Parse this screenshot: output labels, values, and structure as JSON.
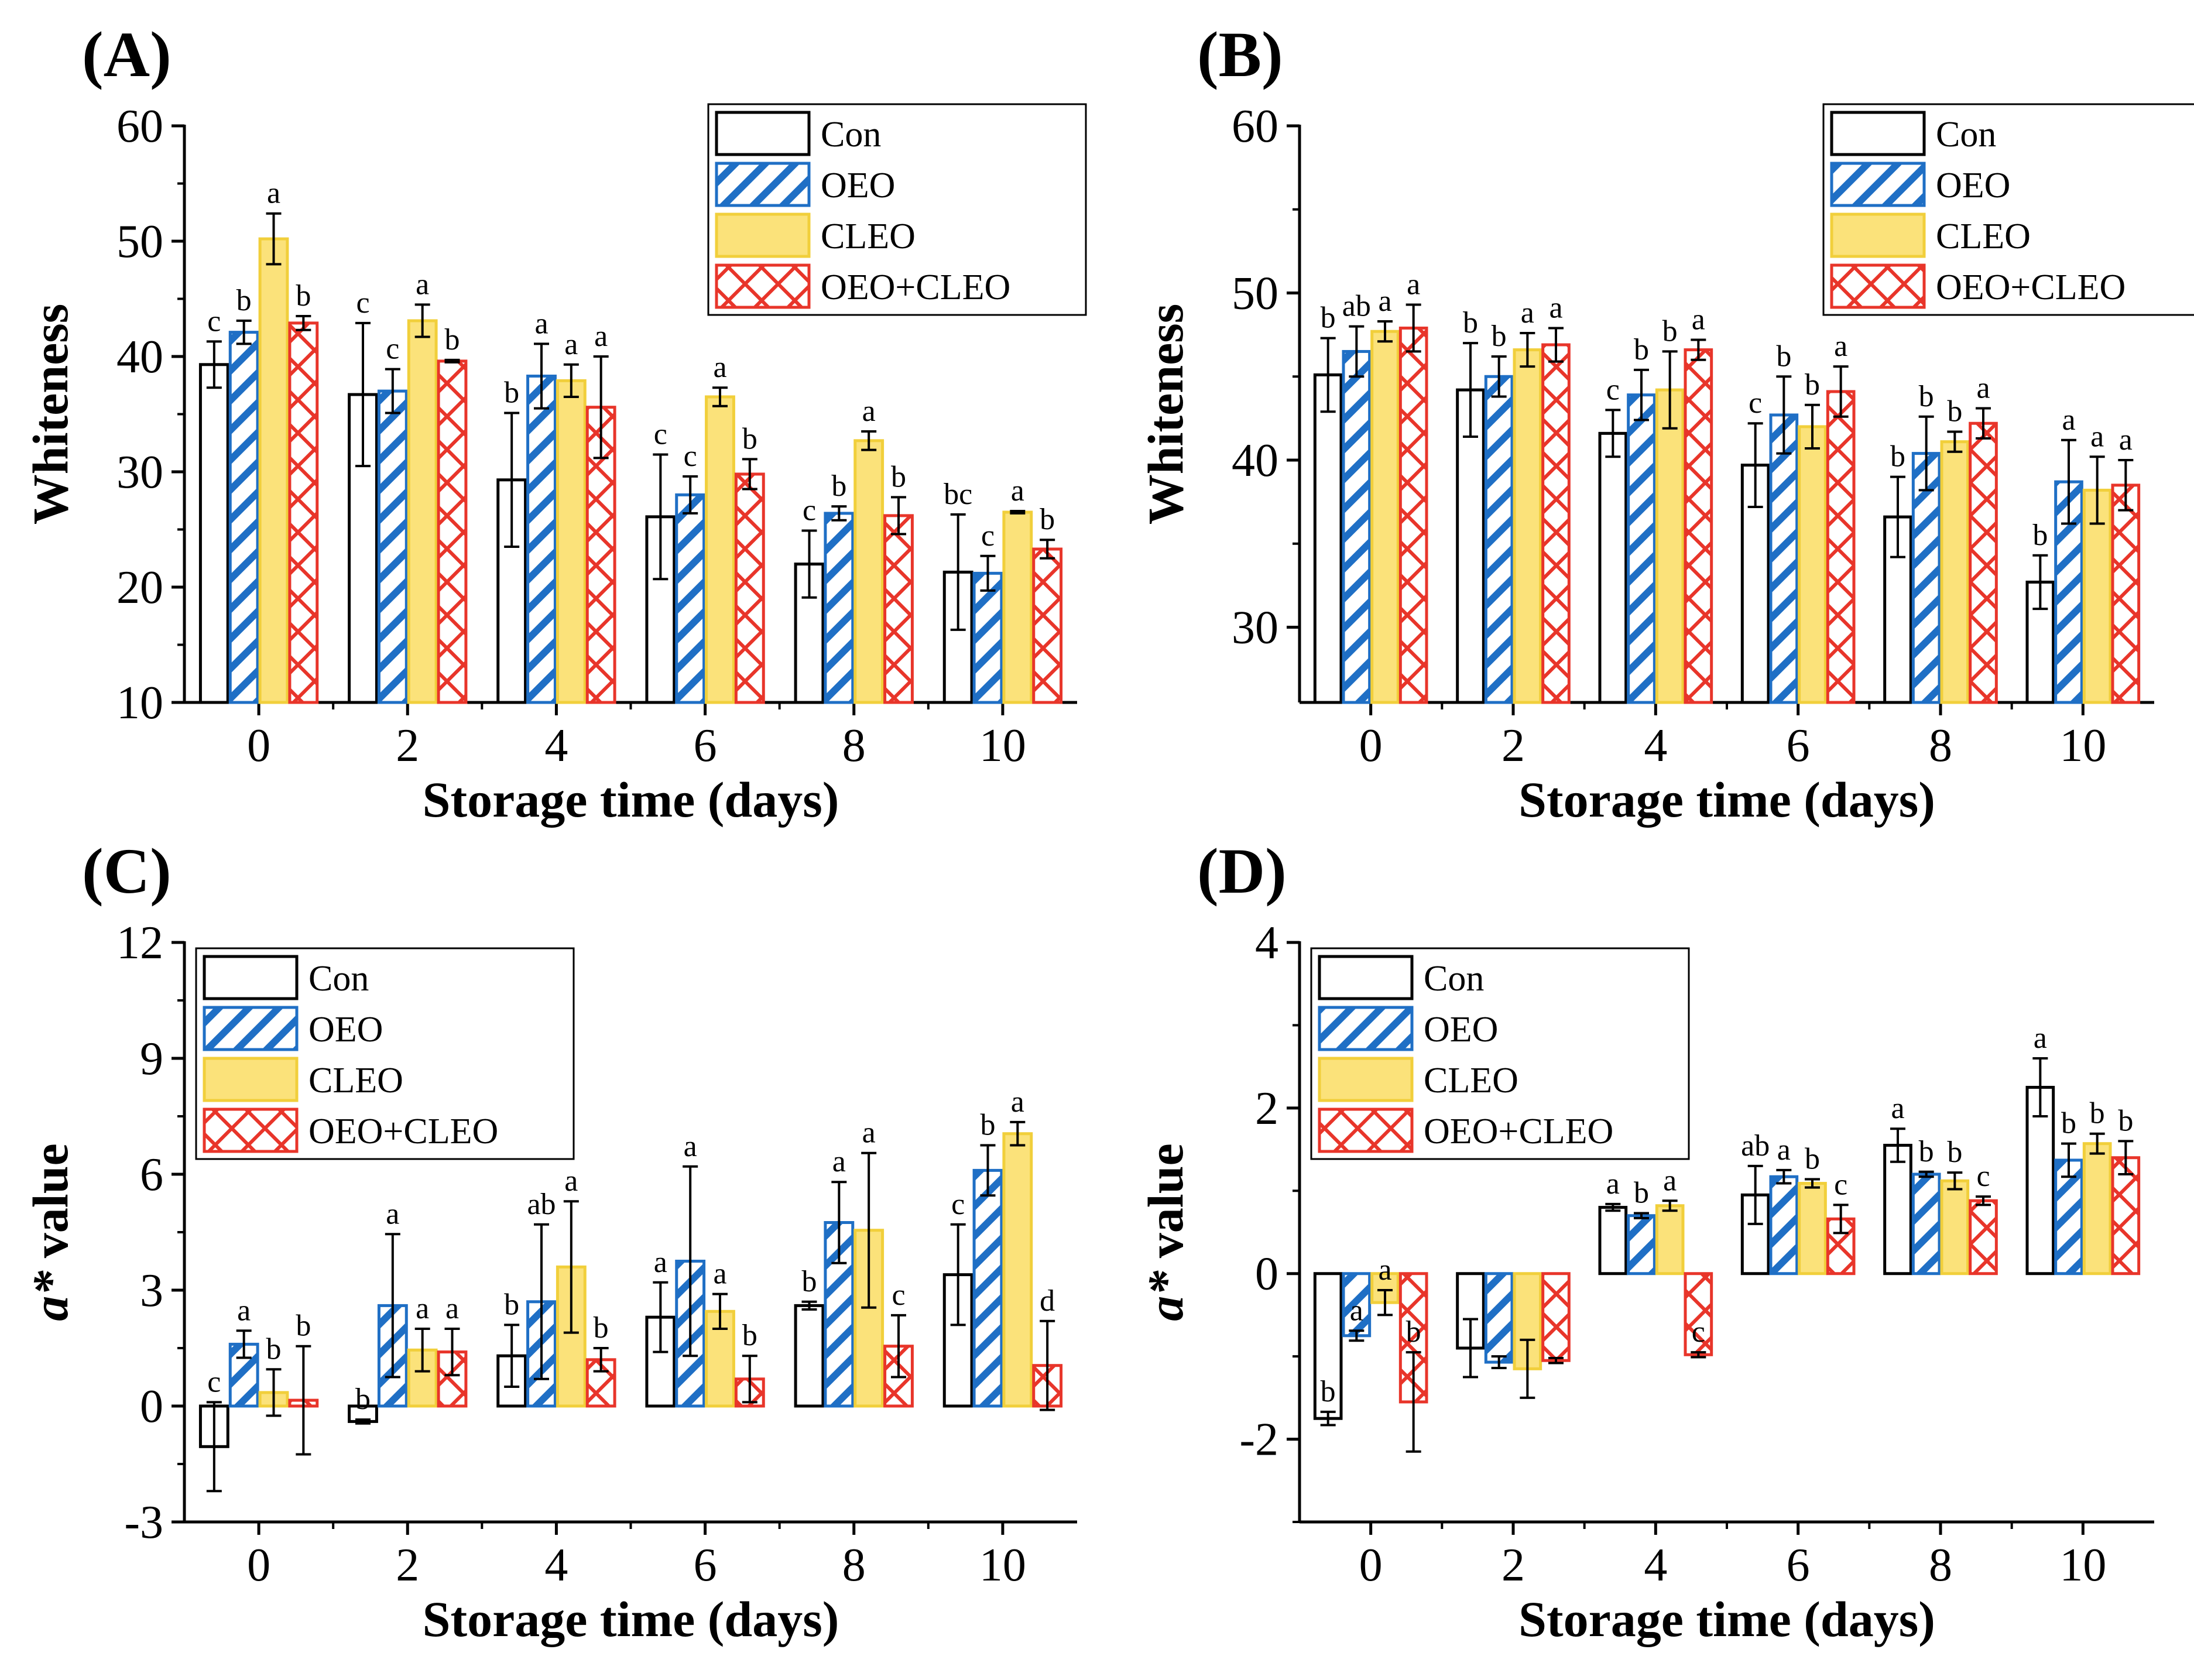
{
  "colors": {
    "Con": "#000000",
    "OEO": "#1f6fc5",
    "CLEO": "#f1cf3b",
    "CLEO_fill": "#fbe27a",
    "OEO+CLEO": "#e8352a"
  },
  "chart_data": [
    {
      "panel": "(A)",
      "type": "bar",
      "title": "",
      "xlabel": "Storage time (days)",
      "ylabel": "Whiteness",
      "ylim": [
        10,
        60
      ],
      "yticks": [
        "10",
        "20",
        "30",
        "40",
        "50",
        "60"
      ],
      "categories": [
        "0",
        "2",
        "4",
        "6",
        "8",
        "10"
      ],
      "legend": [
        "Con",
        "OEO",
        "CLEO",
        "OEO+CLEO"
      ],
      "legend_position": "top-right",
      "series": [
        {
          "name": "Con",
          "values": [
            39.3,
            36.7,
            29.3,
            26.1,
            22.0,
            21.3
          ],
          "errors": [
            2.0,
            6.2,
            5.8,
            5.4,
            2.9,
            5.0
          ],
          "letters": [
            "c",
            "c",
            "b",
            "c",
            "c",
            "bc"
          ]
        },
        {
          "name": "OEO",
          "values": [
            42.1,
            37.0,
            38.3,
            28.0,
            26.4,
            21.2
          ],
          "errors": [
            1.0,
            1.9,
            2.8,
            1.6,
            0.6,
            1.5
          ],
          "letters": [
            "b",
            "c",
            "a",
            "c",
            "b",
            "c"
          ]
        },
        {
          "name": "CLEO",
          "values": [
            50.2,
            43.1,
            37.9,
            36.5,
            32.7,
            26.5
          ],
          "errors": [
            2.2,
            1.4,
            1.4,
            0.8,
            0.8,
            0.1
          ],
          "letters": [
            "a",
            "a",
            "a",
            "a",
            "a",
            "a"
          ]
        },
        {
          "name": "OEO+CLEO",
          "values": [
            42.9,
            39.6,
            35.6,
            29.8,
            26.2,
            23.3
          ],
          "errors": [
            0.6,
            0.1,
            4.4,
            1.3,
            1.6,
            0.8
          ],
          "letters": [
            "b",
            "b",
            "a",
            "b",
            "b",
            "b"
          ]
        }
      ]
    },
    {
      "panel": "(B)",
      "type": "bar",
      "title": "",
      "xlabel": "Storage time (days)",
      "ylabel": "Whiteness",
      "ylim": [
        25.5,
        60
      ],
      "yticks": [
        "30",
        "40",
        "50",
        "60"
      ],
      "categories": [
        "0",
        "2",
        "4",
        "6",
        "8",
        "10"
      ],
      "legend": [
        "Con",
        "OEO",
        "CLEO",
        "OEO+CLEO"
      ],
      "legend_position": "top-right",
      "series": [
        {
          "name": "Con",
          "values": [
            45.1,
            44.2,
            41.6,
            39.7,
            36.6,
            32.7
          ],
          "errors": [
            2.2,
            2.8,
            1.4,
            2.5,
            2.4,
            1.6
          ],
          "letters": [
            "b",
            "b",
            "c",
            "c",
            "b",
            "b"
          ]
        },
        {
          "name": "OEO",
          "values": [
            46.5,
            45.0,
            43.9,
            42.7,
            40.4,
            38.7
          ],
          "errors": [
            1.5,
            1.2,
            1.5,
            2.3,
            2.2,
            2.5
          ],
          "letters": [
            "ab",
            "b",
            "b",
            "b",
            "b",
            "a"
          ]
        },
        {
          "name": "CLEO",
          "values": [
            47.7,
            46.6,
            44.2,
            42.0,
            41.1,
            38.2
          ],
          "errors": [
            0.6,
            1.0,
            2.3,
            1.3,
            0.6,
            2.0
          ],
          "letters": [
            "a",
            "a",
            "b",
            "b",
            "b",
            "a"
          ]
        },
        {
          "name": "OEO+CLEO",
          "values": [
            47.9,
            46.9,
            46.6,
            44.1,
            42.2,
            38.5
          ],
          "errors": [
            1.4,
            1.0,
            0.6,
            1.5,
            0.9,
            1.5
          ],
          "letters": [
            "a",
            "a",
            "a",
            "a",
            "a",
            "a"
          ]
        }
      ]
    },
    {
      "panel": "(C)",
      "type": "bar",
      "title": "",
      "xlabel": "Storage time (days)",
      "ylabel_italic": "a*",
      "ylabel_rest": " value",
      "ylim": [
        -3,
        12
      ],
      "yticks": [
        "-3",
        "0",
        "3",
        "6",
        "9",
        "12"
      ],
      "categories": [
        "0",
        "2",
        "4",
        "6",
        "8",
        "10"
      ],
      "legend": [
        "Con",
        "OEO",
        "CLEO",
        "OEO+CLEO"
      ],
      "legend_position": "top-left",
      "series": [
        {
          "name": "Con",
          "values": [
            -1.05,
            -0.4,
            1.3,
            2.3,
            2.6,
            3.4
          ],
          "errors": [
            1.15,
            0.05,
            0.8,
            0.9,
            0.1,
            1.3
          ],
          "letters": [
            "c",
            "b",
            "b",
            "a",
            "b",
            "c"
          ]
        },
        {
          "name": "OEO",
          "values": [
            1.6,
            2.6,
            2.7,
            3.75,
            4.75,
            6.1
          ],
          "errors": [
            0.35,
            1.85,
            2.0,
            2.45,
            1.05,
            0.65
          ],
          "letters": [
            "a",
            "a",
            "ab",
            "a",
            "a",
            "b"
          ]
        },
        {
          "name": "CLEO",
          "values": [
            0.35,
            1.45,
            3.6,
            2.45,
            4.55,
            7.05
          ],
          "errors": [
            0.6,
            0.55,
            1.7,
            0.45,
            2.0,
            0.3
          ],
          "letters": [
            "b",
            "a",
            "a",
            "a",
            "a",
            "a"
          ]
        },
        {
          "name": "OEO+CLEO",
          "values": [
            0.15,
            1.4,
            1.2,
            0.7,
            1.55,
            1.05
          ],
          "errors": [
            1.4,
            0.6,
            0.3,
            0.6,
            0.8,
            1.15
          ],
          "letters": [
            "b",
            "a",
            "b",
            "b",
            "c",
            "d"
          ]
        }
      ]
    },
    {
      "panel": "(D)",
      "type": "bar",
      "title": "",
      "xlabel": "Storage time (days)",
      "ylabel_italic": "a*",
      "ylabel_rest": " value",
      "ylim": [
        -3,
        4
      ],
      "yticks": [
        "-2",
        "0",
        "2",
        "4"
      ],
      "categories": [
        "0",
        "2",
        "4",
        "6",
        "8",
        "10"
      ],
      "legend": [
        "Con",
        "OEO",
        "CLEO",
        "OEO+CLEO"
      ],
      "legend_position": "top-left",
      "series": [
        {
          "name": "Con",
          "values": [
            -1.75,
            -0.9,
            0.8,
            0.95,
            1.55,
            2.25
          ],
          "errors": [
            0.08,
            0.35,
            0.04,
            0.35,
            0.2,
            0.35
          ],
          "letters": [
            "b",
            "",
            "a",
            "ab",
            "a",
            "a"
          ]
        },
        {
          "name": "OEO",
          "values": [
            -0.75,
            -1.07,
            0.7,
            1.17,
            1.2,
            1.37
          ],
          "errors": [
            0.06,
            0.07,
            0.03,
            0.08,
            0.03,
            0.2
          ],
          "letters": [
            "a",
            "",
            "b",
            "a",
            "b",
            "b"
          ]
        },
        {
          "name": "CLEO",
          "values": [
            -0.35,
            -1.15,
            0.82,
            1.09,
            1.12,
            1.57
          ],
          "errors": [
            0.15,
            0.35,
            0.06,
            0.05,
            0.1,
            0.12
          ],
          "letters": [
            "a",
            "",
            "a",
            "b",
            "b",
            "b"
          ]
        },
        {
          "name": "OEO+CLEO",
          "values": [
            -1.55,
            -1.05,
            -0.98,
            0.66,
            0.88,
            1.4
          ],
          "errors": [
            0.6,
            0.03,
            0.03,
            0.17,
            0.05,
            0.2
          ],
          "letters": [
            "b",
            "",
            "c",
            "c",
            "c",
            "b"
          ]
        }
      ]
    }
  ]
}
